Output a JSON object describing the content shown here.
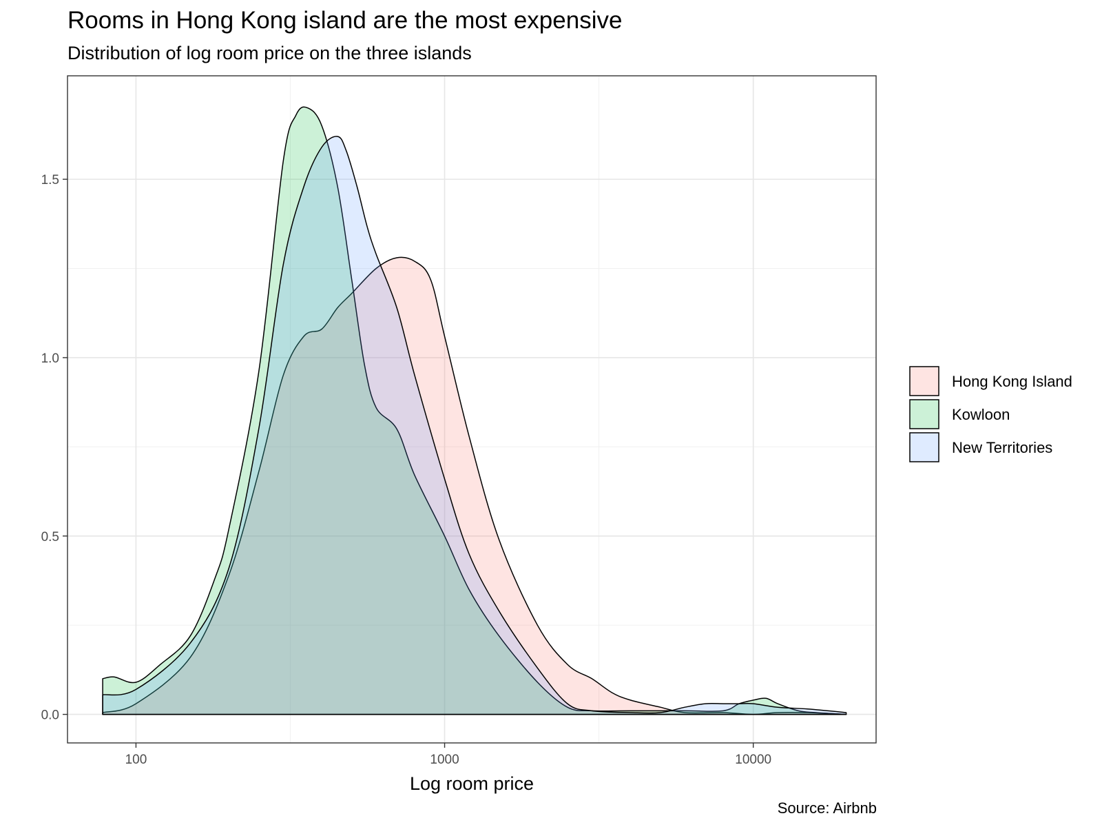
{
  "title": "Rooms in Hong Kong island are the most expensive",
  "subtitle": "Distribution of log room price on the three islands",
  "caption": "Source: Airbnb",
  "chart_data": {
    "type": "area",
    "title": "Rooms in Hong Kong island are the most expensive",
    "subtitle": "Distribution of log room price on the three islands",
    "xlabel": "Log room price",
    "ylabel": "",
    "x_scale": "log10",
    "xlim": [
      60,
      25000
    ],
    "ylim": [
      -0.08,
      1.79
    ],
    "x_ticks": [
      100,
      1000,
      10000
    ],
    "x_tick_labels": [
      "100",
      "1000",
      "10000"
    ],
    "y_ticks": [
      0,
      0.5,
      1,
      1.5
    ],
    "y_tick_labels": [
      "0.0",
      "0.5",
      "1.0",
      "1.5"
    ],
    "grid": true,
    "legend_position": "right",
    "fill_opacity": 0.2,
    "series": [
      {
        "name": "Hong Kong Island",
        "color": "#F8766D",
        "x": [
          78,
          100,
          150,
          200,
          250,
          300,
          350,
          400,
          450,
          500,
          600,
          700,
          800,
          900,
          1000,
          1200,
          1500,
          2000,
          2500,
          3000,
          3500,
          4000,
          5000,
          6000,
          8000,
          10000,
          12000,
          15000,
          20000
        ],
        "y": [
          0.005,
          0.03,
          0.16,
          0.39,
          0.68,
          0.95,
          1.06,
          1.08,
          1.14,
          1.18,
          1.25,
          1.28,
          1.27,
          1.22,
          1.06,
          0.78,
          0.49,
          0.25,
          0.14,
          0.1,
          0.06,
          0.04,
          0.02,
          0.005,
          0.005,
          0.0,
          0.005,
          0.005,
          0.0
        ]
      },
      {
        "name": "Kowloon",
        "color": "#00BA38",
        "x": [
          78,
          85,
          100,
          120,
          150,
          180,
          200,
          250,
          300,
          330,
          360,
          400,
          450,
          500,
          550,
          600,
          700,
          800,
          1000,
          1200,
          1500,
          2000,
          2500,
          3000,
          4000,
          6000,
          8000,
          9000,
          10000,
          11000,
          12000,
          14000,
          16000,
          20000
        ],
        "y": [
          0.1,
          0.105,
          0.09,
          0.14,
          0.22,
          0.38,
          0.52,
          0.96,
          1.55,
          1.68,
          1.7,
          1.65,
          1.48,
          1.22,
          0.98,
          0.86,
          0.8,
          0.67,
          0.5,
          0.35,
          0.22,
          0.09,
          0.02,
          0.01,
          0.01,
          0.01,
          0.01,
          0.03,
          0.04,
          0.045,
          0.03,
          0.01,
          0.005,
          0.0
        ]
      },
      {
        "name": "New Territories",
        "color": "#619CFF",
        "x": [
          78,
          100,
          150,
          200,
          250,
          300,
          350,
          400,
          450,
          480,
          520,
          560,
          600,
          700,
          800,
          1000,
          1200,
          1500,
          2000,
          2500,
          3000,
          4000,
          5000,
          6000,
          7000,
          8000,
          9000,
          10000,
          12000,
          15000,
          20000
        ],
        "y": [
          0.055,
          0.07,
          0.2,
          0.41,
          0.8,
          1.26,
          1.48,
          1.59,
          1.62,
          1.58,
          1.48,
          1.37,
          1.29,
          1.14,
          0.95,
          0.66,
          0.45,
          0.29,
          0.13,
          0.03,
          0.01,
          0.005,
          0.005,
          0.02,
          0.03,
          0.03,
          0.03,
          0.03,
          0.02,
          0.015,
          0.005
        ]
      }
    ]
  }
}
